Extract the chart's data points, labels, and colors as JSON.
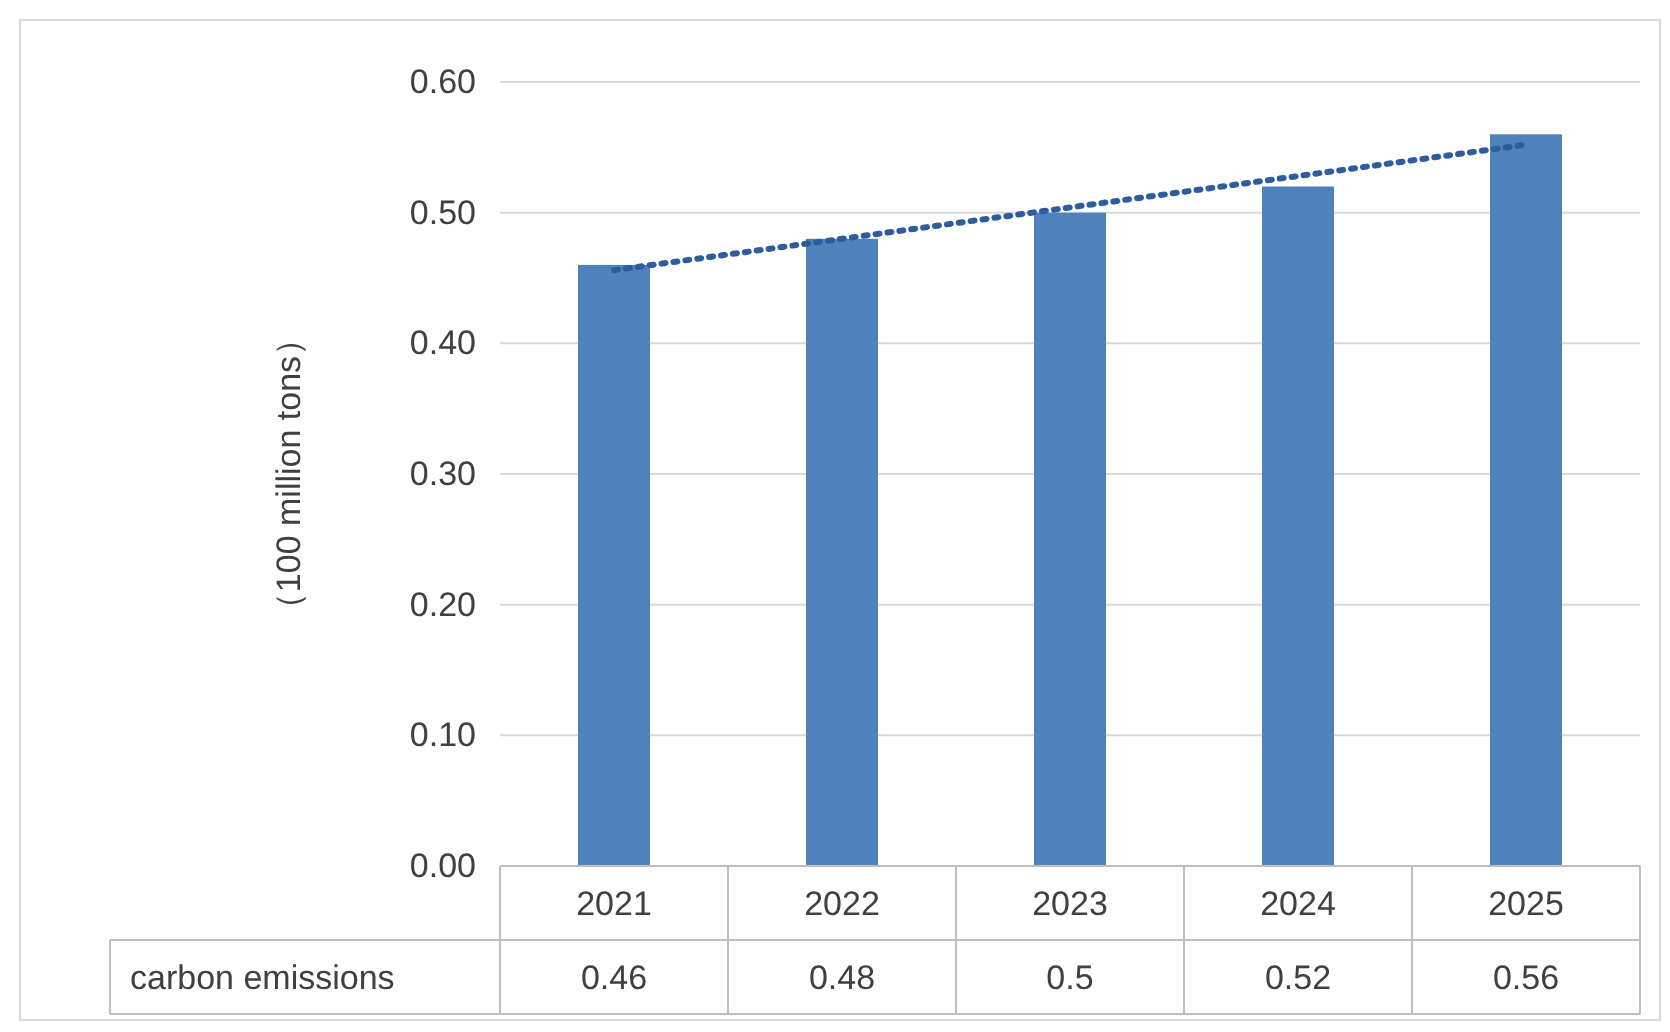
{
  "chart_data": {
    "type": "bar",
    "ylabel": "（100 million tons）",
    "categories": [
      "2021",
      "2022",
      "2023",
      "2024",
      "2025"
    ],
    "series": [
      {
        "name": "carbon emissions",
        "color": "#4f81bd",
        "values": [
          0.46,
          0.48,
          0.5,
          0.52,
          0.56
        ],
        "value_labels": [
          "0.46",
          "0.48",
          "0.5",
          "0.52",
          "0.56"
        ]
      },
      {
        "type": "line",
        "color": "#2e5c9e",
        "line_style": "dotted",
        "values": [
          0.456,
          0.48,
          0.504,
          0.528,
          0.552
        ]
      }
    ],
    "ylim": [
      0,
      0.6
    ],
    "yticks": [
      {
        "value": 0,
        "label": "0.00"
      },
      {
        "value": 0.1,
        "label": "0.10"
      },
      {
        "value": 0.2,
        "label": "0.20"
      },
      {
        "value": 0.3,
        "label": "0.30"
      },
      {
        "value": 0.4,
        "label": "0.40"
      },
      {
        "value": 0.5,
        "label": "0.50"
      },
      {
        "value": 0.6,
        "label": "0.60"
      }
    ],
    "grid": "y"
  }
}
